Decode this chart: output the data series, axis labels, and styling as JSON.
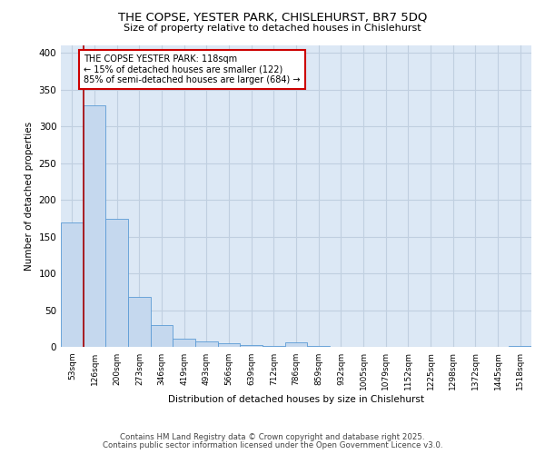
{
  "title": "THE COPSE, YESTER PARK, CHISLEHURST, BR7 5DQ",
  "subtitle": "Size of property relative to detached houses in Chislehurst",
  "xlabel": "Distribution of detached houses by size in Chislehurst",
  "ylabel": "Number of detached properties",
  "categories": [
    "53sqm",
    "126sqm",
    "200sqm",
    "273sqm",
    "346sqm",
    "419sqm",
    "493sqm",
    "566sqm",
    "639sqm",
    "712sqm",
    "786sqm",
    "859sqm",
    "932sqm",
    "1005sqm",
    "1079sqm",
    "1152sqm",
    "1225sqm",
    "1298sqm",
    "1372sqm",
    "1445sqm",
    "1518sqm"
  ],
  "values": [
    170,
    328,
    175,
    68,
    30,
    12,
    8,
    5,
    3,
    2,
    7,
    2,
    1,
    1,
    1,
    0,
    0,
    0,
    0,
    0,
    2
  ],
  "bar_color": "#c5d8ee",
  "bar_edge_color": "#5b9bd5",
  "vline_x": 0.5,
  "vline_color": "#aa0000",
  "annotation_text": "THE COPSE YESTER PARK: 118sqm\n← 15% of detached houses are smaller (122)\n85% of semi-detached houses are larger (684) →",
  "annotation_box_color": "#ffffff",
  "annotation_box_edge": "#cc0000",
  "ylim": [
    0,
    410
  ],
  "yticks": [
    0,
    50,
    100,
    150,
    200,
    250,
    300,
    350,
    400
  ],
  "grid_color": "#c0cfe0",
  "background_color": "#dce8f5",
  "footer_line1": "Contains HM Land Registry data © Crown copyright and database right 2025.",
  "footer_line2": "Contains public sector information licensed under the Open Government Licence v3.0."
}
